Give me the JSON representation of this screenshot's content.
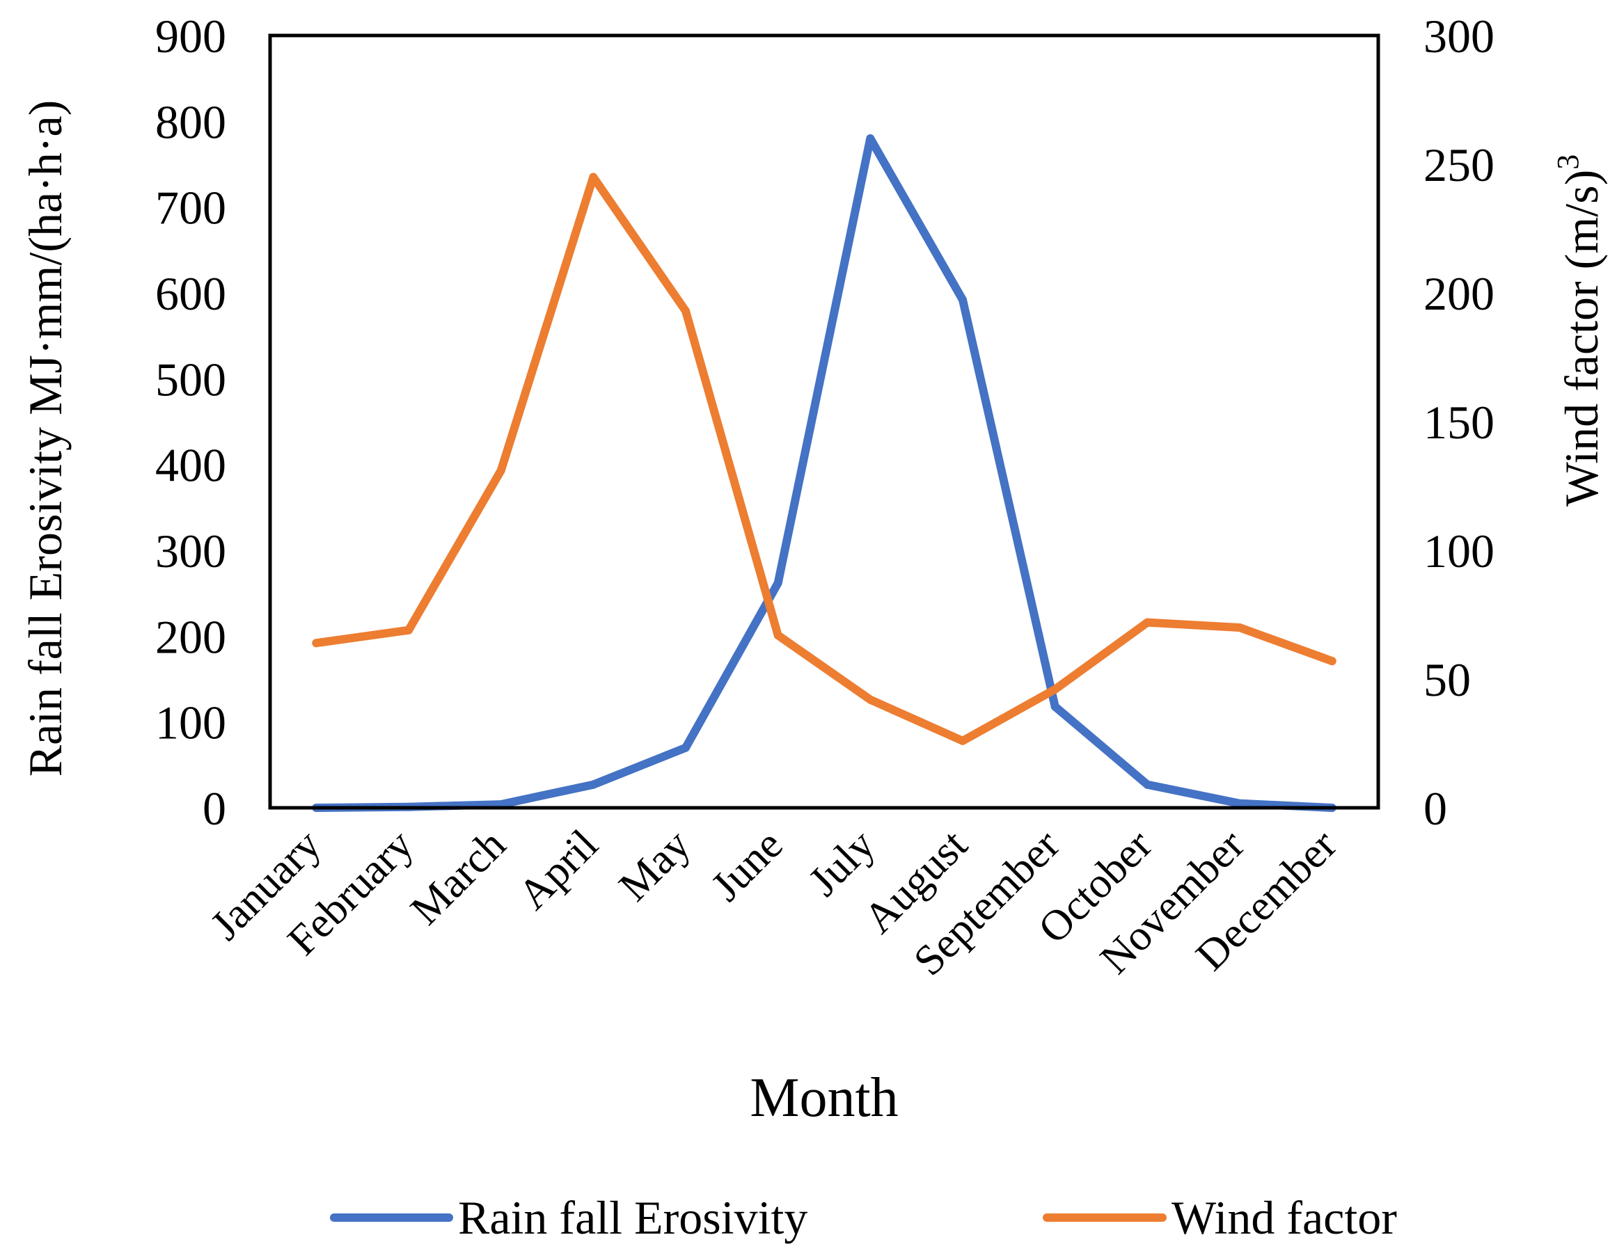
{
  "chart_data": {
    "type": "line",
    "xlabel": "Month",
    "ylabel_left": "Rain fall Erosivity MJ·mm/(ha·h·a)",
    "ylabel_right": "Wind factor  (m/s)",
    "ylabel_right_sup": "3",
    "categories": [
      "January",
      "February",
      "March",
      "April",
      "May",
      "June",
      "July",
      "August",
      "September",
      "October",
      "November",
      "December"
    ],
    "y_left": {
      "min": 0,
      "max": 900,
      "ticks": [
        0,
        100,
        200,
        300,
        400,
        500,
        600,
        700,
        800,
        900
      ]
    },
    "y_right": {
      "min": 0,
      "max": 300,
      "ticks": [
        0,
        50,
        100,
        150,
        200,
        250,
        300
      ]
    },
    "series": [
      {
        "name": "Rain fall Erosivity",
        "axis": "left",
        "color": "#4472C4",
        "values": [
          0,
          1,
          4,
          27,
          70,
          262,
          780,
          592,
          118,
          27,
          5,
          0
        ]
      },
      {
        "name": "Wind factor",
        "axis": "right",
        "color": "#ED7D31",
        "values": [
          64,
          69,
          131,
          245,
          193,
          67,
          42,
          26,
          46,
          72,
          70,
          57
        ]
      }
    ],
    "legend": "bottom",
    "grid": false
  }
}
